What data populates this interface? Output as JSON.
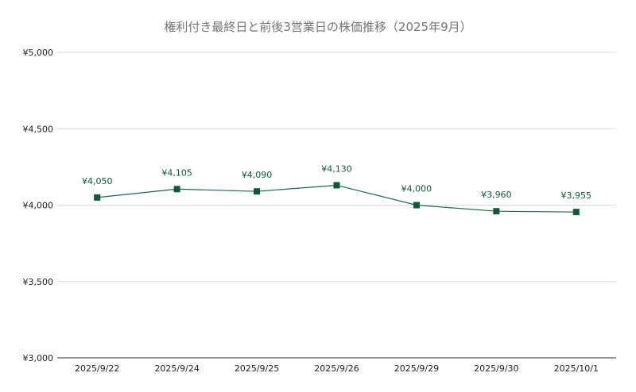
{
  "chart_data": {
    "type": "line",
    "title": "権利付き最終日と前後3営業日の株価推移（2025年9月）",
    "categories": [
      "2025/9/22",
      "2025/9/24",
      "2025/9/25",
      "2025/9/26",
      "2025/9/29",
      "2025/9/30",
      "2025/10/1"
    ],
    "values": [
      4050,
      4105,
      4090,
      4130,
      4000,
      3960,
      3955
    ],
    "data_labels": [
      "¥4,050",
      "¥4,105",
      "¥4,090",
      "¥4,130",
      "¥4,000",
      "¥3,960",
      "¥3,955"
    ],
    "ylim": [
      3000,
      5000
    ],
    "yticks": [
      3000,
      3500,
      4000,
      4500,
      5000
    ],
    "ytick_labels": [
      "¥3,000",
      "¥3,500",
      "¥4,000",
      "¥4,500",
      "¥5,000"
    ],
    "grid": true,
    "legend": "none",
    "colors": {
      "series": "#1a6b43",
      "marker": "#0f5a36",
      "label": "#0f5a36",
      "grid": "#dddddd"
    }
  }
}
